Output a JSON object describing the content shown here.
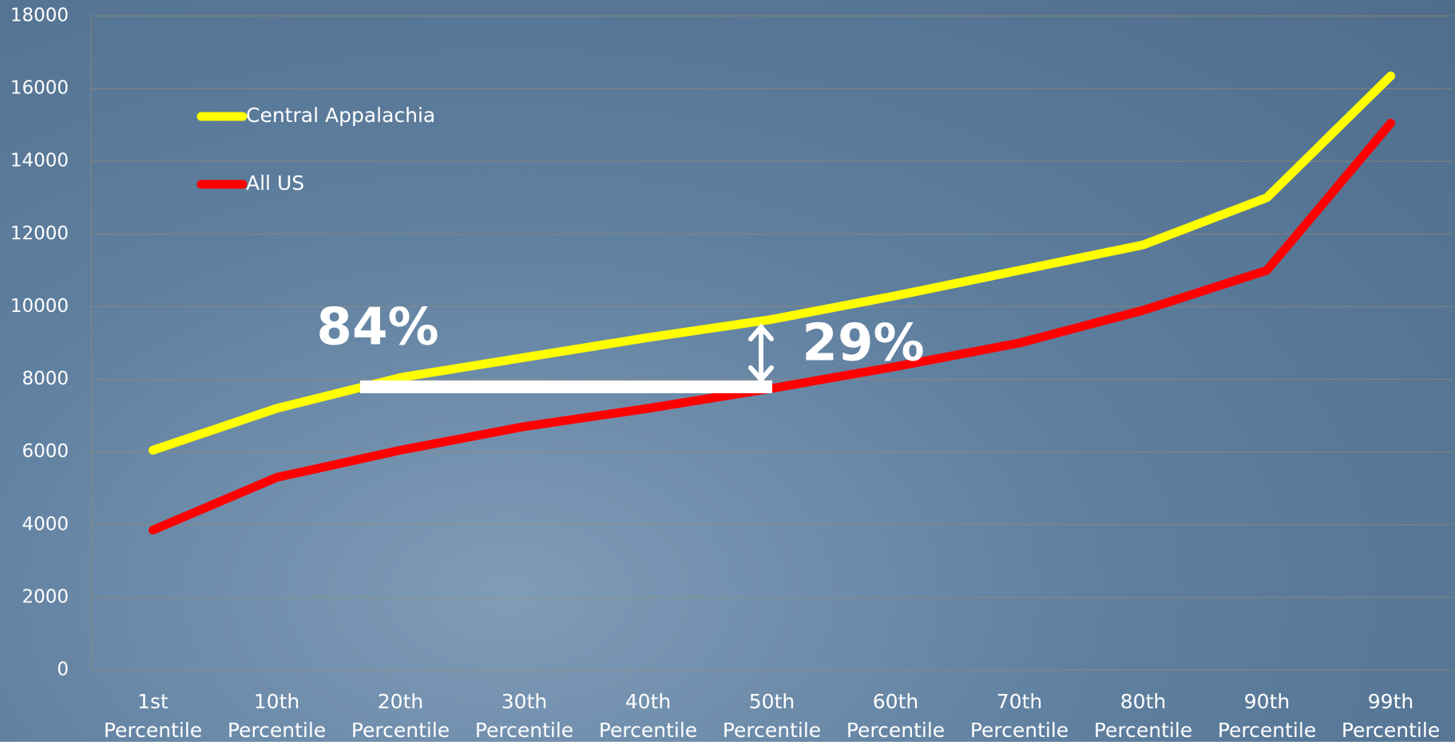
{
  "chart_data": {
    "type": "line",
    "categories": [
      "1st Percentile",
      "10th Percentile",
      "20th Percentile",
      "30th Percentile",
      "40th Percentile",
      "50th Percentile",
      "60th Percentile",
      "70th Percentile",
      "80th Percentile",
      "90th Percentile",
      "99th Percentile"
    ],
    "series": [
      {
        "name": "Central Appalachia",
        "color": "#ffff00",
        "values": [
          6050,
          7200,
          8050,
          8600,
          9150,
          9650,
          10300,
          11000,
          11700,
          13000,
          16350
        ]
      },
      {
        "name": "All US",
        "color": "#ff0000",
        "values": [
          3850,
          5300,
          6050,
          6700,
          7200,
          7750,
          8350,
          9000,
          9900,
          11000,
          15050
        ]
      }
    ],
    "ylim": [
      0,
      18000
    ],
    "yticks": [
      0,
      2000,
      4000,
      6000,
      8000,
      10000,
      12000,
      14000,
      16000,
      18000
    ],
    "grid": true,
    "annotations": [
      "84%",
      "29%"
    ]
  }
}
